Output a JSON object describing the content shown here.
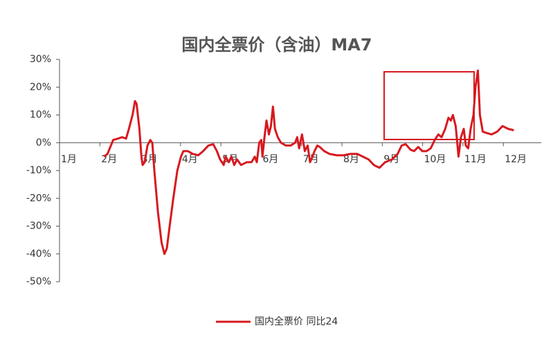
{
  "chart_data": {
    "type": "line",
    "title": "国内全票价（含油）MA7",
    "x": [
      2.1,
      2.19,
      2.33,
      2.45,
      2.55,
      2.65,
      2.72,
      2.81,
      2.87,
      2.91,
      2.98,
      3.03,
      3.06,
      3.11,
      3.18,
      3.25,
      3.3,
      3.35,
      3.44,
      3.53,
      3.6,
      3.66,
      3.73,
      3.82,
      3.92,
      4.01,
      4.07,
      4.18,
      4.3,
      4.44,
      4.56,
      4.69,
      4.81,
      4.9,
      4.98,
      5.07,
      5.12,
      5.19,
      5.26,
      5.33,
      5.4,
      5.5,
      5.64,
      5.76,
      5.84,
      5.89,
      5.95,
      6.0,
      6.03,
      6.08,
      6.13,
      6.19,
      6.24,
      6.29,
      6.34,
      6.41,
      6.49,
      6.61,
      6.73,
      6.84,
      6.89,
      6.94,
      7.01,
      7.08,
      7.15,
      7.21,
      7.27,
      7.32,
      7.39,
      7.45,
      7.56,
      7.69,
      7.87,
      8.04,
      8.21,
      8.38,
      8.52,
      8.66,
      8.79,
      8.93,
      9.07,
      9.24,
      9.38,
      9.48,
      9.58,
      9.7,
      9.79,
      9.89,
      9.99,
      10.1,
      10.2,
      10.3,
      10.39,
      10.47,
      10.56,
      10.64,
      10.7,
      10.75,
      10.82,
      10.89,
      10.95,
      11.02,
      11.07,
      11.13,
      11.19,
      11.26,
      11.31,
      11.37,
      11.42,
      11.49,
      11.59,
      11.71,
      11.85,
      11.98,
      12.12,
      12.26
    ],
    "series": [
      {
        "name": "国内全票价 同比24",
        "color": "#d7191f",
        "values": [
          -5,
          -4,
          1,
          1.5,
          2,
          1.5,
          5,
          10,
          15,
          14,
          5,
          -5,
          -8,
          -7,
          -1,
          1,
          0,
          -10,
          -25,
          -36,
          -40,
          -38,
          -30,
          -20,
          -10,
          -5,
          -3,
          -3,
          -4,
          -4.5,
          -3,
          -1,
          -0.5,
          -3,
          -6,
          -8,
          -5,
          -7,
          -5,
          -8,
          -6,
          -8,
          -7,
          -7,
          -5,
          -7,
          0,
          1,
          -5,
          2,
          8,
          3,
          6,
          13,
          5,
          2,
          0,
          -1,
          -1,
          0,
          2,
          -2,
          3,
          -3,
          -1,
          -7,
          -5,
          -3,
          -1,
          -1.5,
          -3,
          -4,
          -4.5,
          -4.5,
          -4,
          -4,
          -5,
          -6,
          -8,
          -9,
          -7,
          -6,
          -4,
          -1,
          -0.5,
          -2.5,
          -3,
          -1.5,
          -3,
          -3,
          -2,
          1,
          3,
          2,
          5,
          9,
          8,
          10,
          6,
          -5,
          2,
          5,
          -1,
          -2,
          5,
          10,
          20,
          26,
          10,
          4,
          3.5,
          3,
          4,
          6,
          5,
          4.5
        ]
      }
    ],
    "xlim": [
      1,
      12.94
    ],
    "ylim": [
      -50,
      30
    ],
    "xticks": [
      {
        "value": 1,
        "label": "1月"
      },
      {
        "value": 2,
        "label": "2月"
      },
      {
        "value": 3,
        "label": "3月"
      },
      {
        "value": 4,
        "label": "4月"
      },
      {
        "value": 5,
        "label": "5月"
      },
      {
        "value": 6,
        "label": "6月"
      },
      {
        "value": 7,
        "label": "7月"
      },
      {
        "value": 8,
        "label": "8月"
      },
      {
        "value": 9,
        "label": "9月"
      },
      {
        "value": 10,
        "label": "10月"
      },
      {
        "value": 11,
        "label": "11月"
      },
      {
        "value": 12,
        "label": "12月"
      }
    ],
    "yticks": [
      {
        "value": -50,
        "label": "-50%"
      },
      {
        "value": -40,
        "label": "-40%"
      },
      {
        "value": -30,
        "label": "-30%"
      },
      {
        "value": -20,
        "label": "-20%"
      },
      {
        "value": -10,
        "label": "-10%"
      },
      {
        "value": 0,
        "label": "0%"
      },
      {
        "value": 10,
        "label": "10%"
      },
      {
        "value": 20,
        "label": "20%"
      },
      {
        "value": 30,
        "label": "30%"
      }
    ],
    "legend": "bottom"
  }
}
